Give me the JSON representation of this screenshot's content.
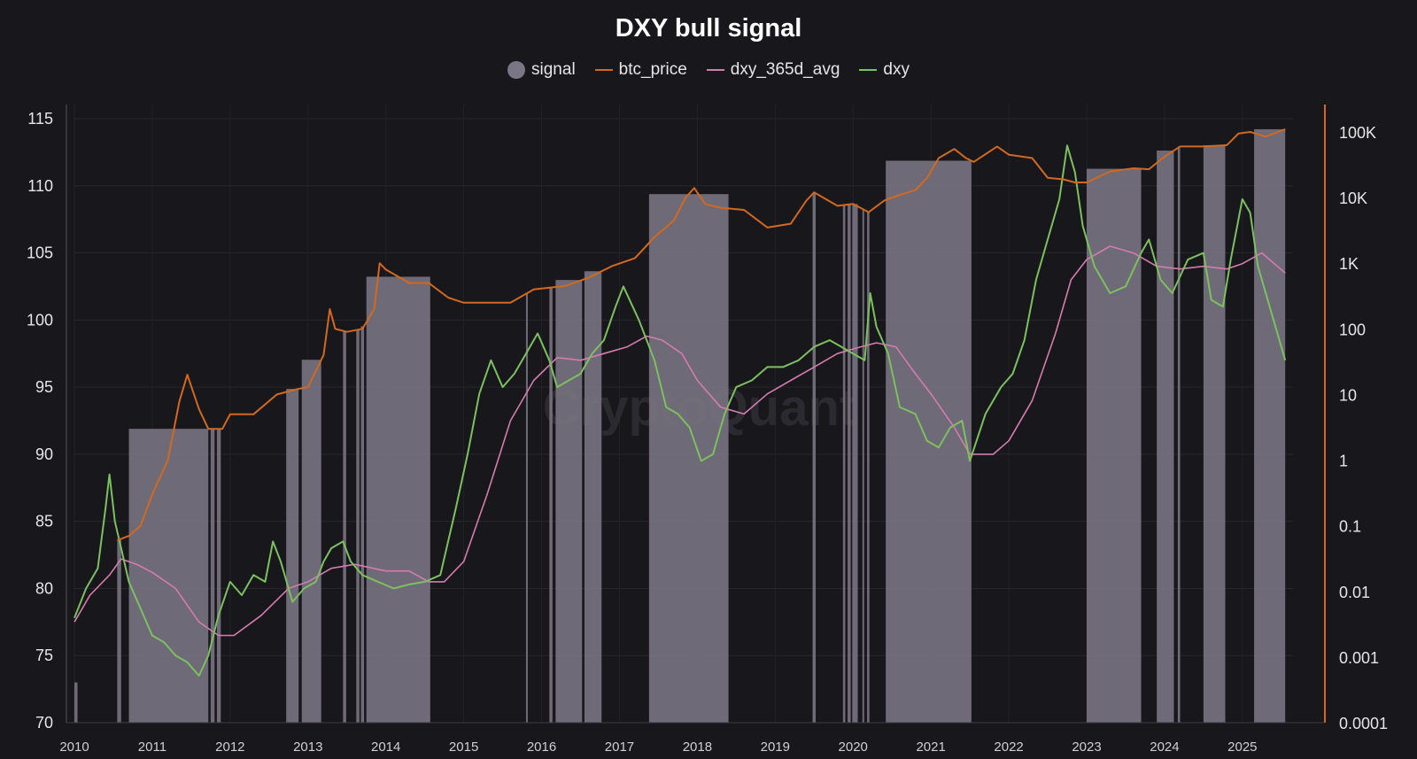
{
  "chart_data": {
    "type": "line",
    "title": "DXY bull signal",
    "watermark": "CryptoQuant",
    "legend": [
      {
        "name": "signal",
        "color": "#7a7686",
        "marker": "dot"
      },
      {
        "name": "btc_price",
        "color": "#d2691e",
        "marker": "line"
      },
      {
        "name": "dxy_365d_avg",
        "color": "#d67bb0",
        "marker": "line"
      },
      {
        "name": "dxy",
        "color": "#7cc05f",
        "marker": "line"
      }
    ],
    "x_ticks": [
      "2010",
      "2011",
      "2012",
      "2013",
      "2014",
      "2015",
      "2016",
      "2017",
      "2018",
      "2019",
      "2020",
      "2021",
      "2022",
      "2023",
      "2024",
      "2025"
    ],
    "xlim": [
      2010.0,
      2025.65
    ],
    "y_left": {
      "ylim": [
        70,
        116
      ],
      "ticks": [
        "70",
        "75",
        "80",
        "85",
        "90",
        "95",
        "100",
        "105",
        "110",
        "115"
      ]
    },
    "y_right": {
      "scale": "log",
      "ylim": [
        0.0001,
        200000
      ],
      "ticks": [
        "0.0001",
        "0.001",
        "0.01",
        "0.1",
        "1",
        "10",
        "100",
        "1K",
        "10K",
        "100K"
      ]
    },
    "grid": true,
    "legend_position": "top-center",
    "signal_periods": [
      [
        2010.0,
        2010.04
      ],
      [
        2010.55,
        2010.6
      ],
      [
        2010.7,
        2011.72
      ],
      [
        2011.75,
        2011.8
      ],
      [
        2011.83,
        2011.88
      ],
      [
        2012.72,
        2012.88
      ],
      [
        2012.92,
        2013.17
      ],
      [
        2013.45,
        2013.49
      ],
      [
        2013.62,
        2013.66
      ],
      [
        2013.68,
        2013.72
      ],
      [
        2013.75,
        2014.57
      ],
      [
        2015.8,
        2015.82
      ],
      [
        2016.1,
        2016.14
      ],
      [
        2016.18,
        2016.52
      ],
      [
        2016.55,
        2016.77
      ],
      [
        2017.38,
        2018.4
      ],
      [
        2019.48,
        2019.52
      ],
      [
        2019.87,
        2019.9
      ],
      [
        2019.93,
        2019.97
      ],
      [
        2019.99,
        2020.06
      ],
      [
        2020.12,
        2020.14
      ],
      [
        2020.18,
        2020.21
      ],
      [
        2020.42,
        2021.52
      ],
      [
        2023.0,
        2023.7
      ],
      [
        2023.9,
        2024.12
      ],
      [
        2024.17,
        2024.2
      ],
      [
        2024.5,
        2024.78
      ],
      [
        2025.15,
        2025.55
      ]
    ],
    "series": [
      {
        "name": "btc_price",
        "axis": "right",
        "x": [
          2010.55,
          2010.7,
          2010.85,
          2011.0,
          2011.2,
          2011.35,
          2011.45,
          2011.6,
          2011.72,
          2011.9,
          2012.0,
          2012.3,
          2012.6,
          2012.85,
          2013.0,
          2013.2,
          2013.28,
          2013.35,
          2013.5,
          2013.7,
          2013.85,
          2013.92,
          2014.0,
          2014.3,
          2014.55,
          2014.8,
          2015.0,
          2015.3,
          2015.6,
          2015.9,
          2016.3,
          2016.6,
          2016.9,
          2017.2,
          2017.45,
          2017.7,
          2017.85,
          2017.96,
          2018.1,
          2018.3,
          2018.6,
          2018.9,
          2019.2,
          2019.4,
          2019.5,
          2019.8,
          2020.0,
          2020.2,
          2020.4,
          2020.6,
          2020.8,
          2020.95,
          2021.1,
          2021.3,
          2021.45,
          2021.55,
          2021.85,
          2022.0,
          2022.3,
          2022.5,
          2022.7,
          2022.85,
          2023.0,
          2023.3,
          2023.6,
          2023.8,
          2024.0,
          2024.2,
          2024.5,
          2024.8,
          2024.95,
          2025.1,
          2025.3,
          2025.55
        ],
        "values": [
          0.06,
          0.07,
          0.1,
          0.3,
          1,
          8,
          20,
          6,
          3,
          3,
          5,
          5,
          10,
          12,
          13,
          40,
          200,
          100,
          90,
          100,
          200,
          1000,
          800,
          500,
          500,
          300,
          250,
          250,
          250,
          400,
          450,
          600,
          900,
          1200,
          2500,
          4500,
          10000,
          14000,
          8000,
          7000,
          6500,
          3500,
          4000,
          9000,
          12000,
          7500,
          8000,
          6000,
          9000,
          11000,
          13000,
          20000,
          40000,
          55000,
          40000,
          35000,
          60000,
          45000,
          40000,
          20000,
          19000,
          17000,
          17000,
          25000,
          28000,
          27000,
          42000,
          60000,
          60000,
          63000,
          95000,
          100000,
          85000,
          110000
        ]
      },
      {
        "name": "dxy_365d_avg",
        "axis": "left",
        "x": [
          2010.0,
          2010.2,
          2010.45,
          2010.6,
          2010.8,
          2011.0,
          2011.3,
          2011.6,
          2011.85,
          2012.05,
          2012.4,
          2012.75,
          2013.0,
          2013.3,
          2013.6,
          2014.0,
          2014.3,
          2014.55,
          2014.75,
          2015.0,
          2015.3,
          2015.6,
          2015.9,
          2016.2,
          2016.5,
          2016.8,
          2017.1,
          2017.35,
          2017.55,
          2017.8,
          2018.0,
          2018.3,
          2018.6,
          2018.9,
          2019.2,
          2019.5,
          2019.8,
          2020.1,
          2020.3,
          2020.55,
          2020.8,
          2021.0,
          2021.3,
          2021.5,
          2021.8,
          2022.0,
          2022.3,
          2022.6,
          2022.8,
          2023.0,
          2023.3,
          2023.6,
          2023.9,
          2024.2,
          2024.5,
          2024.8,
          2025.0,
          2025.25,
          2025.55
        ],
        "values": [
          77.5,
          79.5,
          81.0,
          82.2,
          81.8,
          81.2,
          80.0,
          77.5,
          76.5,
          76.5,
          78.0,
          80.0,
          80.5,
          81.5,
          81.8,
          81.3,
          81.3,
          80.5,
          80.5,
          82.0,
          87.0,
          92.5,
          95.5,
          97.2,
          97.0,
          97.5,
          98.0,
          98.8,
          98.5,
          97.5,
          95.5,
          93.5,
          93.0,
          94.5,
          95.5,
          96.5,
          97.5,
          98.0,
          98.3,
          98.0,
          96.0,
          94.5,
          92.0,
          90.0,
          90.0,
          91.0,
          94.0,
          99.0,
          103.0,
          104.5,
          105.5,
          105.0,
          104.0,
          103.8,
          104.0,
          103.8,
          104.2,
          105.0,
          103.5
        ]
      },
      {
        "name": "dxy",
        "axis": "left",
        "x": [
          2010.0,
          2010.15,
          2010.3,
          2010.4,
          2010.45,
          2010.52,
          2010.6,
          2010.7,
          2010.85,
          2011.0,
          2011.15,
          2011.3,
          2011.45,
          2011.6,
          2011.72,
          2011.85,
          2012.0,
          2012.15,
          2012.3,
          2012.45,
          2012.55,
          2012.65,
          2012.8,
          2012.95,
          2013.1,
          2013.2,
          2013.3,
          2013.45,
          2013.55,
          2013.7,
          2013.9,
          2014.1,
          2014.3,
          2014.5,
          2014.7,
          2014.9,
          2015.05,
          2015.2,
          2015.35,
          2015.5,
          2015.65,
          2015.8,
          2015.95,
          2016.1,
          2016.2,
          2016.35,
          2016.5,
          2016.65,
          2016.8,
          2016.95,
          2017.05,
          2017.25,
          2017.45,
          2017.6,
          2017.75,
          2017.9,
          2018.05,
          2018.2,
          2018.35,
          2018.5,
          2018.7,
          2018.9,
          2019.1,
          2019.3,
          2019.5,
          2019.7,
          2019.85,
          2020.0,
          2020.15,
          2020.22,
          2020.3,
          2020.45,
          2020.6,
          2020.8,
          2020.95,
          2021.1,
          2021.25,
          2021.4,
          2021.5,
          2021.7,
          2021.9,
          2022.05,
          2022.2,
          2022.35,
          2022.5,
          2022.65,
          2022.75,
          2022.85,
          2022.95,
          2023.1,
          2023.3,
          2023.5,
          2023.7,
          2023.8,
          2023.95,
          2024.1,
          2024.3,
          2024.5,
          2024.6,
          2024.75,
          2024.85,
          2025.0,
          2025.1,
          2025.2,
          2025.35,
          2025.5,
          2025.55
        ],
        "values": [
          77.8,
          80.0,
          81.5,
          86.0,
          88.5,
          85.0,
          83.0,
          80.5,
          78.5,
          76.5,
          76.0,
          75.0,
          74.5,
          73.5,
          75.0,
          78.0,
          80.5,
          79.5,
          81.0,
          80.5,
          83.5,
          82.0,
          79.0,
          80.0,
          80.5,
          82.0,
          83.0,
          83.5,
          82.0,
          81.0,
          80.5,
          80.0,
          80.3,
          80.5,
          81.0,
          86.0,
          90.0,
          94.5,
          97.0,
          95.0,
          96.0,
          97.5,
          99.0,
          97.0,
          95.0,
          95.5,
          96.0,
          97.5,
          98.5,
          101.0,
          102.5,
          100.0,
          97.0,
          93.5,
          93.0,
          92.0,
          89.5,
          90.0,
          93.0,
          95.0,
          95.5,
          96.5,
          96.5,
          97.0,
          98.0,
          98.5,
          98.0,
          97.5,
          97.0,
          102.0,
          99.5,
          97.5,
          93.5,
          93.0,
          91.0,
          90.5,
          92.0,
          92.5,
          89.5,
          93.0,
          95.0,
          96.0,
          98.5,
          103.0,
          106.0,
          109.0,
          113.0,
          111.0,
          107.0,
          104.0,
          102.0,
          102.5,
          105.0,
          106.0,
          103.0,
          102.0,
          104.5,
          105.0,
          101.5,
          101.0,
          104.5,
          109.0,
          108.0,
          104.0,
          101.0,
          98.0,
          97.0
        ]
      }
    ]
  }
}
